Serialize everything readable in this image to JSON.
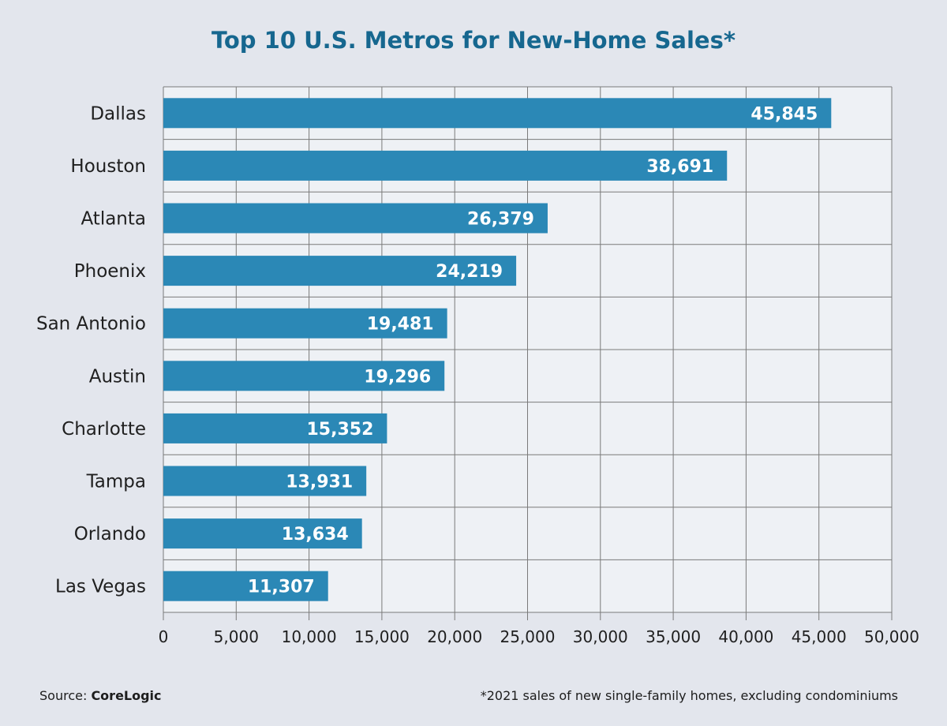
{
  "title": "Top 10 U.S. Metros for New-Home Sales*",
  "source_prefix": "Source: ",
  "source_name": "CoreLogic",
  "footnote": "*2021 sales of new single-family homes, excluding condominiums",
  "colors": {
    "bar": "#2b88b6",
    "title": "#16678f",
    "plot_background": "#eef1f5",
    "page_background": "#e3e6ed",
    "grid": "#7a7a7a"
  },
  "chart_data": {
    "type": "bar",
    "orientation": "horizontal",
    "title": "Top 10 U.S. Metros for New-Home Sales*",
    "xlabel": "",
    "ylabel": "",
    "xlim": [
      0,
      50000
    ],
    "grid": true,
    "categories": [
      "Dallas",
      "Houston",
      "Atlanta",
      "Phoenix",
      "San Antonio",
      "Austin",
      "Charlotte",
      "Tampa",
      "Orlando",
      "Las Vegas"
    ],
    "values": [
      45845,
      38691,
      26379,
      24219,
      19481,
      19296,
      15352,
      13931,
      13634,
      11307
    ],
    "value_labels": [
      "45,845",
      "38,691",
      "26,379",
      "24,219",
      "19,481",
      "19,296",
      "15,352",
      "13,931",
      "13,634",
      "11,307"
    ],
    "ticks": [
      0,
      5000,
      10000,
      15000,
      20000,
      25000,
      30000,
      35000,
      40000,
      45000,
      50000
    ],
    "tick_labels": [
      "0",
      "5,000",
      "10,000",
      "15,000",
      "20,000",
      "25,000",
      "30,000",
      "35,000",
      "40,000",
      "45,000",
      "50,000"
    ]
  }
}
